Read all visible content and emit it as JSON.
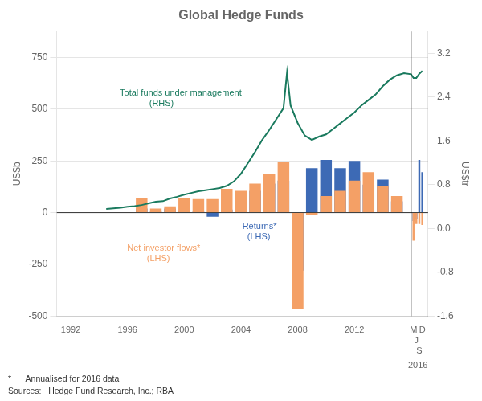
{
  "chart_data": {
    "type": "bar",
    "title": "Global Hedge Funds",
    "ylabel": "US$b",
    "y2label": "US$tr",
    "series": [
      {
        "type": "bar",
        "color": "#3d6ab5",
        "x": [
          1997,
          1998,
          1999,
          2000,
          2001,
          2002,
          2003,
          2004,
          2005,
          2006,
          2007,
          2008,
          2009,
          2010,
          2011,
          2012,
          2013,
          2014,
          2015,
          2016.17,
          2016.37,
          2016.58,
          2016.79
        ],
        "values": [
          20,
          5,
          20,
          5,
          5,
          -20,
          15,
          95,
          105,
          140,
          155,
          -280,
          215,
          255,
          215,
          250,
          135,
          160,
          55,
          -40,
          -30,
          255,
          195
        ]
      },
      {
        "type": "bar",
        "color": "#f4a066",
        "x": [
          1997,
          1998,
          1999,
          2000,
          2001,
          2002,
          2003,
          2004,
          2005,
          2006,
          2007,
          2008,
          2009,
          2010,
          2011,
          2012,
          2013,
          2014,
          2015,
          2016.17,
          2016.37,
          2016.58,
          2016.79
        ],
        "values": [
          70,
          20,
          30,
          70,
          65,
          65,
          115,
          105,
          140,
          185,
          245,
          -465,
          -10,
          80,
          105,
          155,
          195,
          130,
          80,
          -135,
          -55,
          -55,
          -60
        ]
      },
      {
        "type": "line",
        "axis": "y2",
        "color": "#1a7a5e",
        "x": [
          1994.5,
          1995,
          1995.5,
          1996,
          1996.5,
          1997,
          1997.5,
          1998,
          1998.5,
          1999,
          1999.5,
          2000,
          2000.5,
          2001,
          2001.5,
          2002,
          2002.5,
          2003,
          2003.5,
          2004,
          2004.5,
          2005,
          2005.5,
          2006,
          2006.5,
          2007,
          2007.25,
          2007.5,
          2008,
          2008.5,
          2009,
          2009.5,
          2010,
          2010.5,
          2011,
          2011.5,
          2012,
          2012.5,
          2013,
          2013.5,
          2014,
          2014.5,
          2015,
          2015.5,
          2016,
          2016.17,
          2016.37,
          2016.58,
          2016.79
        ],
        "values": [
          0.36,
          0.37,
          0.38,
          0.4,
          0.41,
          0.43,
          0.46,
          0.49,
          0.5,
          0.55,
          0.58,
          0.62,
          0.65,
          0.68,
          0.7,
          0.72,
          0.74,
          0.78,
          0.86,
          1.0,
          1.2,
          1.4,
          1.62,
          1.8,
          2.0,
          2.2,
          2.85,
          2.25,
          1.93,
          1.7,
          1.62,
          1.68,
          1.72,
          1.82,
          1.92,
          2.02,
          2.12,
          2.25,
          2.35,
          2.45,
          2.6,
          2.72,
          2.8,
          2.84,
          2.82,
          2.75,
          2.75,
          2.83,
          2.88
        ]
      }
    ],
    "xlim": [
      1991,
      2017.2
    ],
    "xticks": [
      1992,
      1996,
      2000,
      2004,
      2008,
      2012,
      {
        "value": 2016.17,
        "label": "M"
      },
      {
        "value": 2016.37,
        "label": "J"
      },
      {
        "value": 2016.58,
        "label": "S"
      },
      {
        "value": 2016.79,
        "label": "D"
      }
    ],
    "ylim": [
      -500,
      875
    ],
    "yticks": [
      -500,
      -250,
      0,
      250,
      500,
      750
    ],
    "y2lim": [
      -1.6,
      3.6
    ],
    "y2ticks": [
      -1.6,
      -0.8,
      {
        "value": 0,
        "label": "0.0"
      },
      0.8,
      1.6,
      2.4,
      3.2
    ],
    "grid": true,
    "x_lines": [
      2016
    ],
    "y_lines": [
      0
    ],
    "annotations": [
      {
        "text": "Total funds under management\n            (RHS)",
        "color": "#1a7a5e"
      },
      {
        "text": "Returns*\n  (LHS)",
        "color": "#3d6ab5"
      },
      {
        "text": "Net investor flows*\n        (LHS)",
        "color": "#f4a066"
      }
    ],
    "x_group_label": "2016",
    "footnotes": [
      "*      Annualised for 2016 data",
      "Sources:   Hedge Fund Research, Inc.; RBA"
    ]
  }
}
